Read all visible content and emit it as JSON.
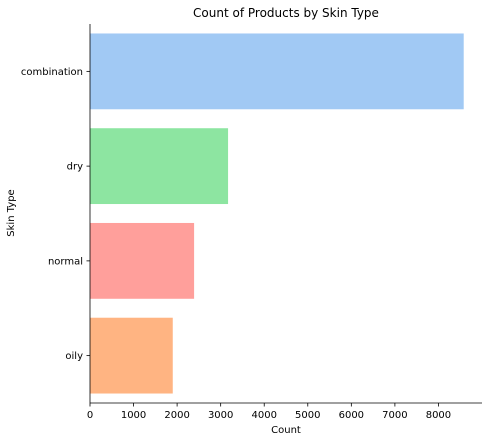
{
  "chart_data": {
    "type": "bar",
    "orientation": "horizontal",
    "title": "Count of Products by Skin Type",
    "xlabel": "Count",
    "ylabel": "Skin Type",
    "categories": [
      "combination",
      "dry",
      "normal",
      "oily"
    ],
    "values": [
      8580,
      3170,
      2390,
      1900
    ],
    "colors": [
      "#a1c9f4",
      "#8de5a1",
      "#ff9f9b",
      "#ffb482"
    ],
    "xlim": [
      0,
      9000
    ],
    "xticks": [
      0,
      1000,
      2000,
      3000,
      4000,
      5000,
      6000,
      7000,
      8000
    ],
    "xtick_labels": [
      "0",
      "1000",
      "2000",
      "3000",
      "4000",
      "5000",
      "6000",
      "7000",
      "8000"
    ],
    "grid": false,
    "legend": "none"
  }
}
